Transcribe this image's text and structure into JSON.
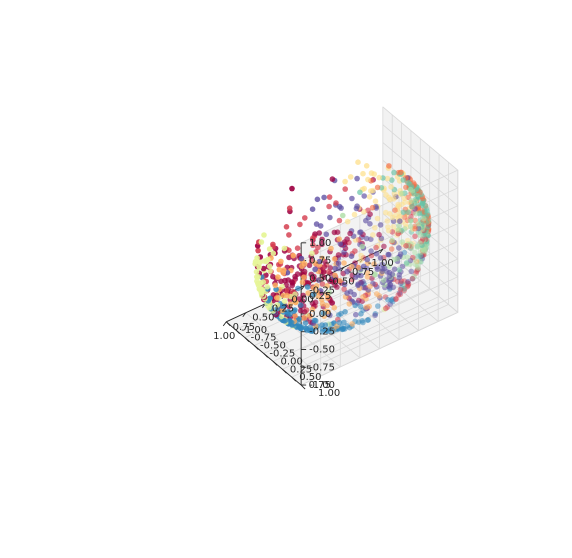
{
  "chart_data": {
    "type": "scatter",
    "projection": "3d",
    "title": "",
    "xlabel": "",
    "ylabel": "",
    "zlabel": "",
    "grid": true,
    "legend": false,
    "xlim": [
      -1.0,
      1.0
    ],
    "ylim": [
      -1.0,
      1.0
    ],
    "zlim": [
      -1.0,
      1.0
    ],
    "x_ticks": [
      -1.0,
      -0.75,
      -0.5,
      -0.25,
      0.0,
      0.25,
      0.5,
      0.75,
      1.0
    ],
    "y_ticks": [
      -1.0,
      -0.75,
      -0.5,
      -0.25,
      0.0,
      0.25,
      0.5,
      0.75,
      1.0
    ],
    "z_ticks": [
      -1.0,
      -0.75,
      -0.5,
      -0.25,
      0.0,
      0.25,
      0.5,
      0.75,
      1.0
    ],
    "x_tick_labels": [
      "-1.00",
      "-0.75",
      "-0.50",
      "-0.25",
      "0.00",
      "0.25",
      "0.50",
      "0.75",
      "1.00"
    ],
    "y_tick_labels": [
      "-1.00",
      "-0.75",
      "-0.50",
      "-0.25",
      "0.00",
      "0.25",
      "0.50",
      "0.75",
      "1.00"
    ],
    "z_tick_labels": [
      "-1.00",
      "-0.75",
      "-0.50",
      "-0.25",
      "0.00",
      "0.25",
      "0.50",
      "0.75",
      "1.00"
    ],
    "colormap": "Spectral",
    "point_count": 1000,
    "shape": "points on a unit sphere with a gap around the front lower-left, colored by cluster",
    "cluster_colors": [
      "#9e0142",
      "#d53e4f",
      "#f46d43",
      "#fdae61",
      "#fee08b",
      "#e6f598",
      "#abdda4",
      "#66c2a5",
      "#3288bd",
      "#5e4fa2"
    ],
    "points_by_cluster": [
      {
        "color": "#9e0142",
        "points": [
          [
            0.35,
            0.55,
            0.3
          ],
          [
            0.55,
            0.6,
            0.15
          ],
          [
            0.7,
            0.45,
            0.05
          ],
          [
            0.75,
            0.25,
            -0.1
          ]
        ]
      },
      {
        "color": "#d53e4f",
        "points": [
          [
            0.5,
            0.8,
            0.35
          ],
          [
            0.85,
            0.3,
            0.3
          ],
          [
            -0.85,
            0.35,
            -0.6
          ]
        ]
      },
      {
        "color": "#f46d43",
        "points": [
          [
            -0.6,
            0.5,
            0.4
          ],
          [
            -0.7,
            0.2,
            0.2
          ]
        ]
      },
      {
        "color": "#fdae61",
        "points": [
          [
            -0.1,
            -0.4,
            -0.75
          ],
          [
            0.2,
            -0.6,
            -0.8
          ]
        ]
      },
      {
        "color": "#fee08b",
        "points": [
          [
            -0.3,
            0.75,
            0.55
          ],
          [
            -0.2,
            0.3,
            0.45
          ]
        ]
      },
      {
        "color": "#e6f598",
        "points": [
          [
            0.95,
            -0.25,
            -0.4
          ],
          [
            0.8,
            -0.55,
            -0.5
          ]
        ]
      },
      {
        "color": "#abdda4",
        "points": [
          [
            -0.9,
            -0.1,
            -0.4
          ],
          [
            -0.95,
            0.15,
            -0.55
          ]
        ]
      },
      {
        "color": "#66c2a5",
        "points": [
          [
            -0.75,
            0.3,
            0.3
          ],
          [
            -0.9,
            0.25,
            0.0
          ]
        ]
      },
      {
        "color": "#3288bd",
        "points": [
          [
            0.05,
            0.2,
            -0.25
          ],
          [
            0.3,
            0.1,
            -0.4
          ],
          [
            0.55,
            0.0,
            -0.55
          ]
        ]
      },
      {
        "color": "#5e4fa2",
        "points": [
          [
            -0.4,
            -0.3,
            -0.6
          ],
          [
            -0.6,
            -0.1,
            -0.7
          ],
          [
            0.1,
            0.65,
            0.65
          ]
        ]
      }
    ]
  }
}
